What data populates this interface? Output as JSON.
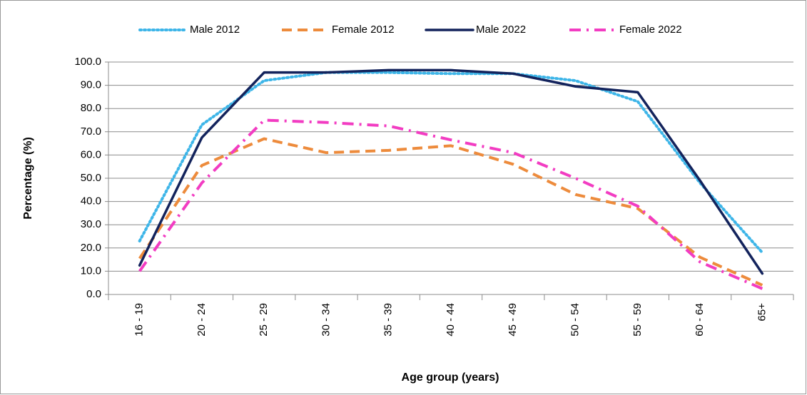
{
  "chart_data": {
    "type": "line",
    "x_label": "Age group (years)",
    "y_label": "Percentage (%)",
    "categories": [
      "16 - 19",
      "20 - 24",
      "25 - 29",
      "30 - 34",
      "35 - 39",
      "40 - 44",
      "45 - 49",
      "50 - 54",
      "55 - 59",
      "60 - 64",
      "65+"
    ],
    "series": [
      {
        "name": "Male 2012",
        "color": "#3db5e8",
        "dash": "dotted",
        "values": [
          23,
          73,
          92,
          95.5,
          95.5,
          95,
          95,
          92,
          83,
          48,
          18
        ]
      },
      {
        "name": "Female 2012",
        "color": "#ed8b3c",
        "dash": "dashed",
        "values": [
          15.5,
          55.5,
          67,
          61,
          62,
          64,
          56,
          43,
          37,
          16,
          4
        ]
      },
      {
        "name": "Male 2022",
        "color": "#13235c",
        "dash": "solid",
        "values": [
          12.5,
          67.5,
          95.5,
          95.5,
          96.5,
          96.5,
          95,
          89.5,
          87,
          49,
          9
        ]
      },
      {
        "name": "Female 2022",
        "color": "#f23cc2",
        "dash": "dashdot",
        "values": [
          10,
          48,
          75,
          74,
          72.5,
          66.5,
          61,
          50,
          38,
          14,
          2.5
        ]
      }
    ],
    "ylim": [
      0,
      100
    ],
    "yticks": [
      {
        "value": 0,
        "label": "0.0"
      },
      {
        "value": 10,
        "label": "10.0"
      },
      {
        "value": 20,
        "label": "20.0"
      },
      {
        "value": 30,
        "label": "30.0"
      },
      {
        "value": 40,
        "label": "40.0"
      },
      {
        "value": 50,
        "label": "50.0"
      },
      {
        "value": 60,
        "label": "60.0"
      },
      {
        "value": 70,
        "label": "70.0"
      },
      {
        "value": 80,
        "label": "80.0"
      },
      {
        "value": 90,
        "label": "90.0"
      },
      {
        "value": 100,
        "label": "100.0"
      }
    ],
    "grid": true,
    "legend": "top"
  }
}
